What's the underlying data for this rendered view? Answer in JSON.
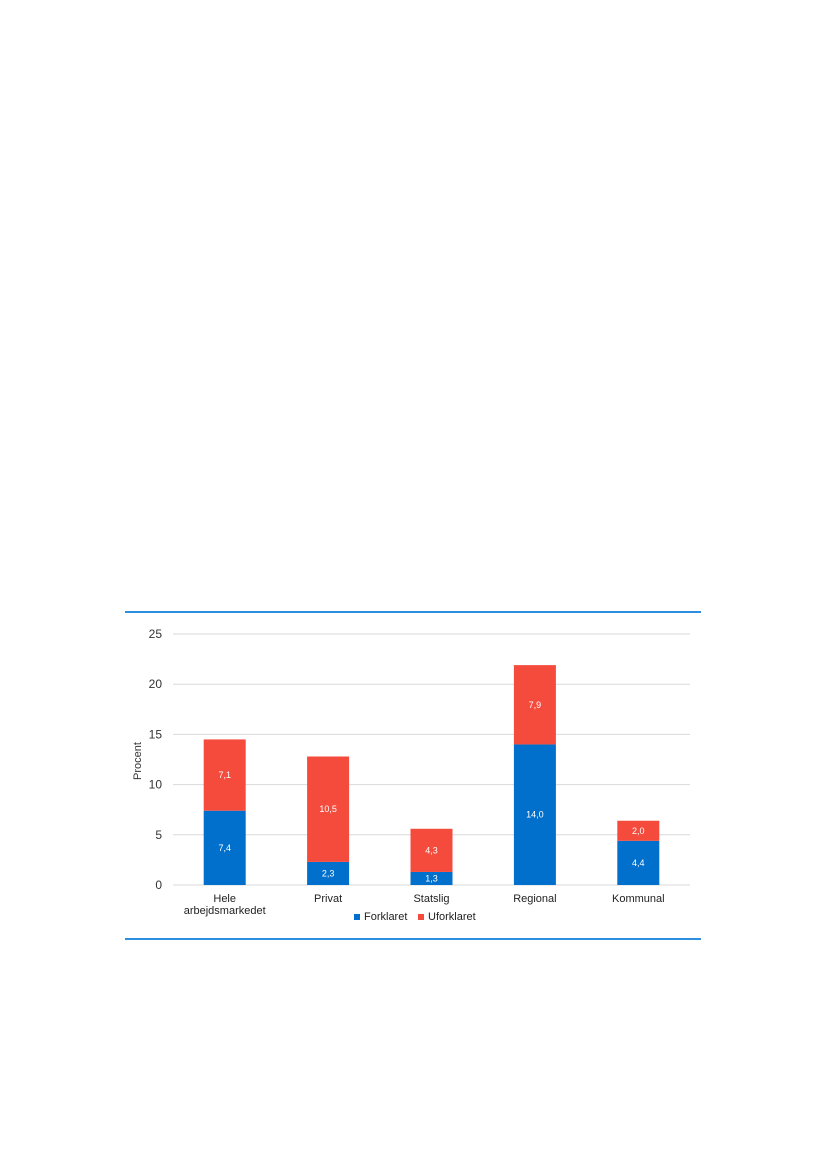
{
  "chart_data": {
    "type": "bar",
    "stacked": true,
    "categories": [
      [
        "Hele",
        "arbejdsmarkedet"
      ],
      [
        "Privat"
      ],
      [
        "Statslig"
      ],
      [
        "Regional"
      ],
      [
        "Kommunal"
      ]
    ],
    "series": [
      {
        "name": "Forklaret",
        "values": [
          7.4,
          2.3,
          1.3,
          14.0,
          4.4
        ],
        "labels": [
          "7,4",
          "2,3",
          "1,3",
          "14,0",
          "4,4"
        ],
        "color": "#0070cc"
      },
      {
        "name": "Uforklaret",
        "values": [
          7.1,
          10.5,
          4.3,
          7.9,
          2.0
        ],
        "labels": [
          "7,1",
          "10,5",
          "4,3",
          "7,9",
          "2,0"
        ],
        "color": "#f44b3c"
      }
    ],
    "ylabel": "Procent",
    "xlabel": "",
    "ylim": [
      0,
      25
    ],
    "yticks": [
      0,
      5,
      10,
      15,
      20,
      25
    ],
    "grid": true,
    "legend_position": "bottom"
  },
  "colors": {
    "frame_rule": "#2e8fe0",
    "gridline": "#d9d9d9"
  }
}
